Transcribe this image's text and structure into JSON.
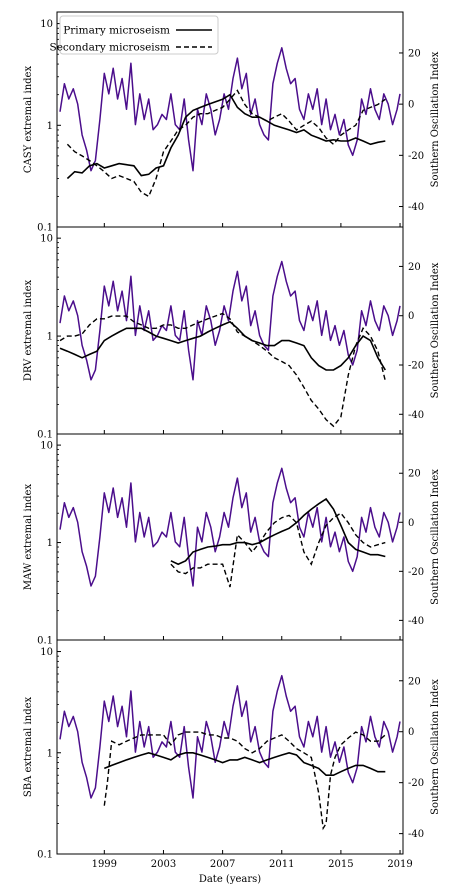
{
  "chart_data": {
    "type": "line",
    "xlabel": "Date (years)",
    "x_ticks": [
      1999,
      2003,
      2007,
      2011,
      2015,
      2019
    ],
    "xlim": [
      1995.8,
      2019.2
    ],
    "y_left_ticks": [
      "0.1",
      "1",
      "10"
    ],
    "y_right_ticks": [
      -40,
      -20,
      0,
      20
    ],
    "y_right_label": "Southern Oscillation Index",
    "y_left_scale": "log",
    "y_left_range": [
      0.1,
      13
    ],
    "y_right_range": [
      -48,
      36
    ],
    "legend": {
      "placement": "top-left",
      "entries": [
        {
          "label": "Primary microseism",
          "style": "solid"
        },
        {
          "label": "Secondary microseism",
          "style": "dashed"
        }
      ]
    },
    "soi": {
      "name": "Southern Oscillation Index",
      "color": "#4b0e8c",
      "x": [
        1996.0,
        1996.3,
        1996.6,
        1996.9,
        1997.2,
        1997.5,
        1997.8,
        1998.1,
        1998.4,
        1998.7,
        1999.0,
        1999.3,
        1999.6,
        1999.9,
        2000.2,
        2000.5,
        2000.8,
        2001.1,
        2001.4,
        2001.7,
        2002.0,
        2002.3,
        2002.6,
        2002.9,
        2003.2,
        2003.5,
        2003.8,
        2004.1,
        2004.4,
        2004.7,
        2005.0,
        2005.3,
        2005.6,
        2005.9,
        2006.2,
        2006.5,
        2006.8,
        2007.1,
        2007.4,
        2007.7,
        2008.0,
        2008.3,
        2008.6,
        2008.9,
        2009.2,
        2009.5,
        2009.8,
        2010.1,
        2010.4,
        2010.7,
        2011.0,
        2011.3,
        2011.6,
        2011.9,
        2012.2,
        2012.5,
        2012.8,
        2013.1,
        2013.4,
        2013.7,
        2014.0,
        2014.3,
        2014.6,
        2014.9,
        2015.2,
        2015.5,
        2015.8,
        2016.1,
        2016.4,
        2016.7,
        2017.0,
        2017.3,
        2017.6,
        2017.9,
        2018.2,
        2018.5,
        2018.8,
        2019.0
      ],
      "y": [
        -3,
        8,
        2,
        6,
        0,
        -12,
        -18,
        -26,
        -22,
        -6,
        12,
        4,
        14,
        2,
        10,
        -2,
        16,
        -8,
        4,
        -6,
        2,
        -10,
        -8,
        -4,
        -6,
        4,
        -8,
        -10,
        2,
        -14,
        -26,
        -2,
        -8,
        4,
        -2,
        -12,
        -6,
        4,
        -2,
        10,
        18,
        6,
        12,
        -4,
        2,
        -8,
        -12,
        -14,
        8,
        16,
        22,
        14,
        8,
        10,
        -2,
        -6,
        4,
        -2,
        6,
        -8,
        2,
        -10,
        -4,
        -12,
        -6,
        -16,
        -20,
        -14,
        2,
        -4,
        6,
        -2,
        -6,
        4,
        0,
        -8,
        -2,
        4
      ]
    },
    "panels": [
      {
        "ylabel": "CASY extremal index",
        "primary": {
          "name": "Primary microseism",
          "x": [
            1996.5,
            1997.0,
            1997.5,
            1998.0,
            1998.5,
            1999.0,
            1999.5,
            2000.0,
            2000.5,
            2001.0,
            2001.5,
            2002.0,
            2002.5,
            2003.0,
            2003.5,
            2004.0,
            2004.5,
            2005.0,
            2005.5,
            2006.0,
            2006.5,
            2007.0,
            2007.5,
            2008.0,
            2008.5,
            2009.0,
            2009.5,
            2010.0,
            2010.5,
            2011.0,
            2011.5,
            2012.0,
            2012.5,
            2013.0,
            2013.5,
            2014.0,
            2014.5,
            2015.0,
            2015.5,
            2016.0,
            2016.5,
            2017.0,
            2017.5,
            2018.0
          ],
          "y": [
            0.3,
            0.35,
            0.34,
            0.4,
            0.42,
            0.38,
            0.4,
            0.42,
            0.41,
            0.4,
            0.32,
            0.33,
            0.38,
            0.4,
            0.6,
            0.8,
            1.2,
            1.4,
            1.5,
            1.6,
            1.7,
            1.8,
            2.0,
            1.5,
            1.3,
            1.2,
            1.2,
            1.1,
            1.0,
            0.95,
            0.9,
            0.85,
            0.9,
            0.8,
            0.75,
            0.7,
            0.72,
            0.7,
            0.7,
            0.75,
            0.7,
            0.65,
            0.68,
            0.7
          ]
        },
        "secondary": {
          "name": "Secondary microseism",
          "x": [
            1996.5,
            1997.0,
            1997.5,
            1998.0,
            1998.5,
            1999.0,
            1999.5,
            2000.0,
            2000.5,
            2001.0,
            2001.5,
            2002.0,
            2002.5,
            2003.0,
            2003.5,
            2004.0,
            2004.5,
            2005.0,
            2005.5,
            2006.0,
            2006.5,
            2007.0,
            2007.5,
            2008.0,
            2008.5,
            2009.0,
            2009.5,
            2010.0,
            2010.5,
            2011.0,
            2011.5,
            2012.0,
            2012.5,
            2013.0,
            2013.5,
            2014.0,
            2014.5,
            2015.0,
            2015.5,
            2016.0,
            2016.5,
            2017.0,
            2017.5,
            2018.0
          ],
          "y": [
            0.65,
            0.55,
            0.5,
            0.45,
            0.4,
            0.35,
            0.3,
            0.32,
            0.3,
            0.28,
            0.22,
            0.2,
            0.3,
            0.55,
            0.7,
            0.9,
            1.0,
            1.2,
            1.3,
            1.3,
            1.4,
            1.5,
            1.8,
            2.2,
            1.6,
            1.3,
            1.2,
            1.1,
            1.2,
            1.3,
            1.1,
            0.9,
            1.0,
            1.1,
            0.95,
            0.75,
            0.65,
            0.8,
            0.9,
            1.0,
            1.4,
            1.5,
            1.6,
            1.8
          ]
        }
      },
      {
        "ylabel": "DRV extremal index",
        "primary": {
          "name": "Primary microseism",
          "x": [
            1996.0,
            1996.5,
            1997.0,
            1997.5,
            1998.0,
            1998.5,
            1999.0,
            1999.5,
            2000.0,
            2000.5,
            2001.0,
            2001.5,
            2002.0,
            2002.5,
            2003.0,
            2003.5,
            2004.0,
            2004.5,
            2005.0,
            2005.5,
            2006.0,
            2006.5,
            2007.0,
            2007.5,
            2008.0,
            2008.5,
            2009.0,
            2009.5,
            2010.0,
            2010.5,
            2011.0,
            2011.5,
            2012.0,
            2012.5,
            2013.0,
            2013.5,
            2014.0,
            2014.5,
            2015.0,
            2015.5,
            2016.0,
            2016.5,
            2017.0,
            2017.5,
            2018.0
          ],
          "y": [
            0.75,
            0.7,
            0.65,
            0.6,
            0.65,
            0.7,
            0.9,
            1.0,
            1.1,
            1.2,
            1.2,
            1.2,
            1.1,
            1.0,
            0.95,
            0.9,
            0.85,
            0.9,
            0.95,
            1.0,
            1.1,
            1.2,
            1.3,
            1.4,
            1.2,
            1.0,
            0.9,
            0.85,
            0.8,
            0.8,
            0.9,
            0.9,
            0.85,
            0.8,
            0.6,
            0.5,
            0.45,
            0.45,
            0.5,
            0.6,
            0.8,
            1.0,
            0.9,
            0.6,
            0.45
          ]
        },
        "secondary": {
          "name": "Secondary microseism",
          "x": [
            1996.0,
            1996.5,
            1997.0,
            1997.5,
            1998.0,
            1998.5,
            1999.0,
            1999.5,
            2000.0,
            2000.5,
            2001.0,
            2001.5,
            2002.0,
            2002.5,
            2003.0,
            2003.5,
            2004.0,
            2004.5,
            2005.0,
            2005.5,
            2006.0,
            2006.5,
            2007.0,
            2007.5,
            2008.0,
            2008.5,
            2009.0,
            2009.5,
            2010.0,
            2010.5,
            2011.0,
            2011.5,
            2012.0,
            2012.5,
            2013.0,
            2013.5,
            2014.0,
            2014.5,
            2015.0,
            2015.5,
            2016.0,
            2016.5,
            2017.0,
            2017.5,
            2018.0
          ],
          "y": [
            0.9,
            1.0,
            1.0,
            1.05,
            1.3,
            1.5,
            1.5,
            1.6,
            1.6,
            1.6,
            1.4,
            1.3,
            1.2,
            1.2,
            1.3,
            1.3,
            1.2,
            1.2,
            1.3,
            1.4,
            1.5,
            1.6,
            1.7,
            1.5,
            1.1,
            1.0,
            0.9,
            0.8,
            0.7,
            0.6,
            0.55,
            0.5,
            0.4,
            0.3,
            0.22,
            0.18,
            0.14,
            0.12,
            0.15,
            0.4,
            0.8,
            1.2,
            1.0,
            0.7,
            0.35
          ]
        }
      },
      {
        "ylabel": "MAW extremal index",
        "primary": {
          "name": "Primary microseism",
          "x": [
            2003.5,
            2004.0,
            2004.5,
            2005.0,
            2005.5,
            2006.0,
            2006.5,
            2007.0,
            2007.5,
            2008.0,
            2008.5,
            2009.0,
            2009.5,
            2010.0,
            2010.5,
            2011.0,
            2011.5,
            2012.0,
            2012.5,
            2013.0,
            2013.5,
            2014.0,
            2014.5,
            2015.0,
            2015.5,
            2016.0,
            2016.5,
            2017.0,
            2017.5,
            2018.0
          ],
          "y": [
            0.65,
            0.6,
            0.65,
            0.8,
            0.85,
            0.9,
            0.92,
            0.95,
            0.95,
            1.0,
            1.0,
            0.95,
            1.0,
            1.1,
            1.2,
            1.3,
            1.4,
            1.6,
            1.9,
            2.2,
            2.5,
            2.8,
            2.2,
            1.5,
            1.0,
            0.85,
            0.8,
            0.75,
            0.75,
            0.72
          ]
        },
        "secondary": {
          "name": "Secondary microseism",
          "x": [
            2003.5,
            2004.0,
            2004.5,
            2005.0,
            2005.5,
            2006.0,
            2006.5,
            2007.0,
            2007.5,
            2008.0,
            2008.5,
            2009.0,
            2009.5,
            2010.0,
            2010.5,
            2011.0,
            2011.5,
            2012.0,
            2012.5,
            2013.0,
            2013.5,
            2014.0,
            2014.5,
            2015.0,
            2015.5,
            2016.0,
            2016.5,
            2017.0,
            2017.5,
            2018.0
          ],
          "y": [
            0.6,
            0.5,
            0.48,
            0.55,
            0.55,
            0.6,
            0.6,
            0.6,
            0.35,
            1.2,
            1.0,
            0.8,
            1.0,
            1.3,
            1.6,
            1.8,
            1.9,
            1.6,
            0.8,
            0.6,
            1.0,
            1.5,
            1.8,
            2.0,
            1.6,
            1.2,
            1.0,
            0.9,
            0.95,
            1.0
          ]
        }
      },
      {
        "ylabel": "SBA extremal index",
        "primary": {
          "name": "Primary microseism",
          "x": [
            1999.0,
            1999.5,
            2000.0,
            2000.5,
            2001.0,
            2001.5,
            2002.0,
            2002.5,
            2003.0,
            2003.5,
            2004.0,
            2004.5,
            2005.0,
            2005.5,
            2006.0,
            2006.5,
            2007.0,
            2007.5,
            2008.0,
            2008.5,
            2009.0,
            2009.5,
            2010.0,
            2010.5,
            2011.0,
            2011.5,
            2012.0,
            2012.5,
            2013.0,
            2013.5,
            2014.0,
            2014.5,
            2015.0,
            2015.5,
            2016.0,
            2016.5,
            2017.0,
            2017.5,
            2018.0
          ],
          "y": [
            0.7,
            0.75,
            0.8,
            0.85,
            0.9,
            0.95,
            1.0,
            0.95,
            0.9,
            0.85,
            0.95,
            1.0,
            1.0,
            0.95,
            0.9,
            0.85,
            0.8,
            0.85,
            0.85,
            0.9,
            0.85,
            0.8,
            0.85,
            0.9,
            0.95,
            1.0,
            0.95,
            0.8,
            0.75,
            0.7,
            0.6,
            0.6,
            0.65,
            0.7,
            0.75,
            0.75,
            0.7,
            0.65,
            0.65
          ]
        },
        "secondary": {
          "name": "Secondary microseism",
          "x": [
            1999.0,
            1999.2,
            1999.5,
            2000.0,
            2000.5,
            2001.0,
            2001.5,
            2002.0,
            2002.5,
            2003.0,
            2003.5,
            2004.0,
            2004.5,
            2005.0,
            2005.5,
            2006.0,
            2006.5,
            2007.0,
            2007.5,
            2008.0,
            2008.5,
            2009.0,
            2009.5,
            2010.0,
            2010.5,
            2011.0,
            2011.5,
            2012.0,
            2012.5,
            2013.0,
            2013.5,
            2013.8,
            2014.0,
            2014.3,
            2014.6,
            2015.0,
            2015.5,
            2016.0,
            2016.5,
            2017.0,
            2017.5,
            2018.0
          ],
          "y": [
            0.3,
            0.5,
            1.3,
            1.2,
            1.3,
            1.4,
            1.5,
            1.5,
            1.5,
            1.5,
            1.2,
            1.5,
            1.6,
            1.6,
            1.6,
            1.5,
            1.5,
            1.4,
            1.4,
            1.3,
            1.1,
            1.0,
            1.1,
            1.3,
            1.4,
            1.5,
            1.3,
            1.1,
            1.0,
            0.9,
            0.4,
            0.18,
            0.2,
            0.6,
            0.9,
            1.2,
            1.4,
            1.6,
            1.5,
            1.3,
            1.3,
            1.5
          ]
        }
      }
    ]
  }
}
